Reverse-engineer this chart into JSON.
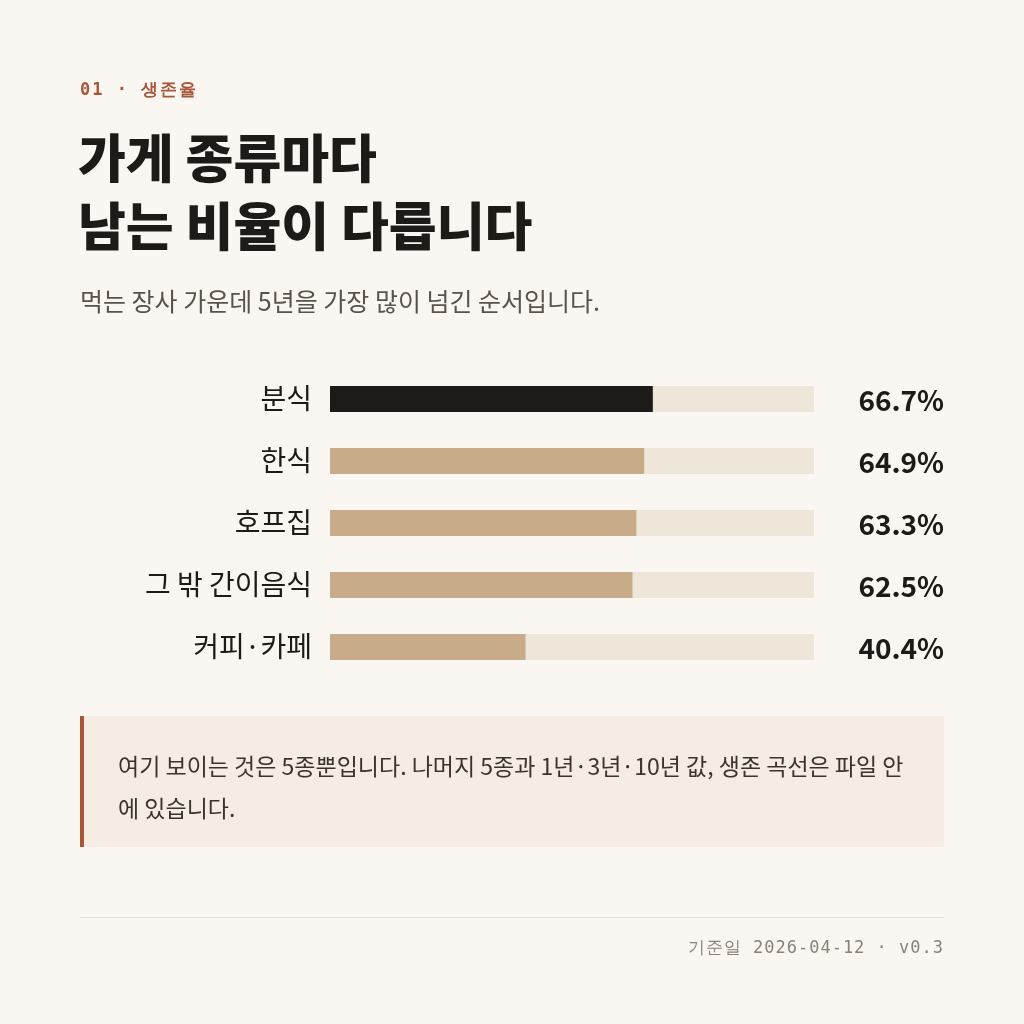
{
  "chart_data": {
    "type": "bar",
    "orientation": "horizontal",
    "title": "가게 종류마다\n남는 비율이 다릅니다",
    "subtitle": "먹는 장사 가운데 5년을 가장 많이 넘긴 순서입니다.",
    "categories": [
      "분식",
      "한식",
      "호프집",
      "그 밖 간이음식",
      "커피·카페"
    ],
    "values": [
      66.7,
      64.9,
      63.3,
      62.5,
      40.4
    ],
    "colors": [
      "#1e1a17",
      "#c8ab88",
      "#c8ab88",
      "#c8ab88",
      "#c8ab88"
    ],
    "value_labels": [
      "66.7%",
      "64.9%",
      "63.3%",
      "62.5%",
      "40.4%"
    ],
    "xlim": [
      0,
      100
    ],
    "tick_labels": "y",
    "annotations": [
      "01 · 생존율",
      "여기 보이는 것은 5종뿐입니다. 나머지 5종과 1년·3년·10년 값, 생존 곡선은 파일 안에 있습니다.",
      "기준일 2026-04-12 · v0.3"
    ]
  }
}
